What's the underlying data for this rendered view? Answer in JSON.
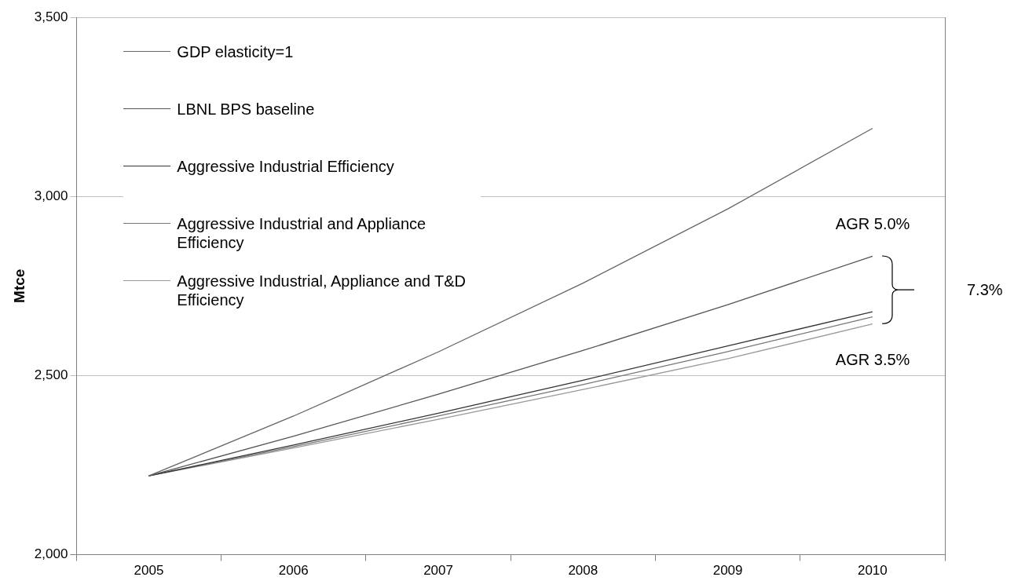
{
  "chart_data": {
    "type": "line",
    "ylabel": "Mtce",
    "categories": [
      "2005",
      "2006",
      "2007",
      "2008",
      "2009",
      "2010"
    ],
    "series": [
      {
        "name": "GDP elasticity=1",
        "color": "#666666",
        "values": [
          2220,
          2387,
          2566,
          2758,
          2965,
          3190
        ]
      },
      {
        "name": "LBNL BPS baseline",
        "color": "#555555",
        "values": [
          2220,
          2331,
          2448,
          2570,
          2698,
          2833
        ]
      },
      {
        "name": "Aggressive Industrial Efficiency",
        "color": "#333333",
        "values": [
          2220,
          2306,
          2395,
          2487,
          2583,
          2678
        ]
      },
      {
        "name": "Aggressive Industrial and Appliance Efficiency",
        "color": "#777777",
        "values": [
          2220,
          2302,
          2387,
          2475,
          2567,
          2664
        ]
      },
      {
        "name": "Aggressive Industrial, Appliance and T&D Efficiency",
        "color": "#999999",
        "values": [
          2220,
          2298,
          2378,
          2461,
          2547,
          2644
        ]
      }
    ],
    "ylim": [
      2000,
      3500
    ],
    "yticks": [
      {
        "value": 2000,
        "label": "2,000"
      },
      {
        "value": 2500,
        "label": "2,500"
      },
      {
        "value": 3000,
        "label": "3,000"
      },
      {
        "value": 3500,
        "label": "3,500"
      }
    ],
    "annotations": [
      "AGR 5.0%",
      "AGR 3.5%",
      "7.3%"
    ],
    "grid": "y",
    "legend": "top left",
    "marker": "none",
    "line_style": "solid"
  }
}
